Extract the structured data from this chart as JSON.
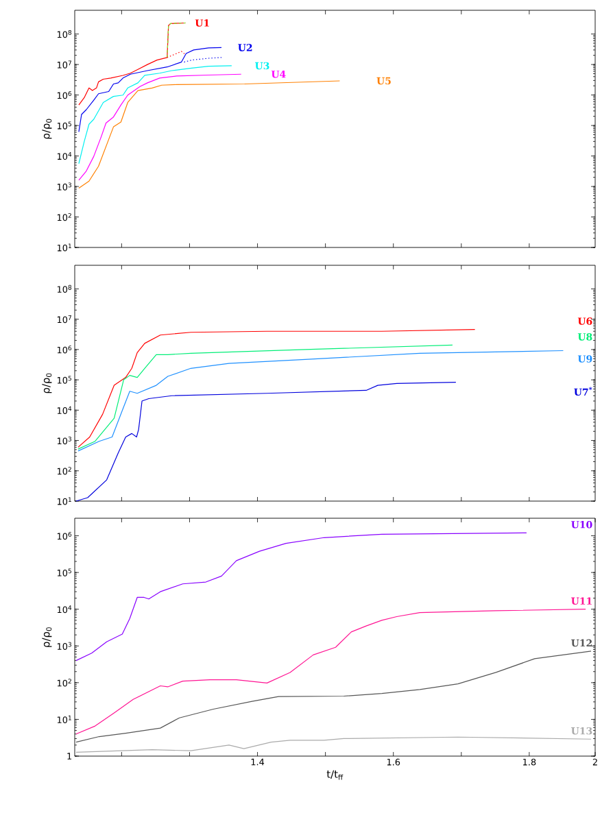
{
  "chart_data": [
    {
      "type": "line",
      "ylabel": "ρ/ρ$_{0}$",
      "log": "y",
      "marker": "none",
      "tick_labels": "y",
      "xlim": [
        1.131,
        1.897
      ],
      "xticks": [
        {
          "value": 1.2,
          "label": null
        },
        {
          "value": 1.3,
          "label": null
        },
        {
          "value": 1.4,
          "label": null
        },
        {
          "value": 1.5,
          "label": null
        },
        {
          "value": 1.6,
          "label": null
        },
        {
          "value": 1.7,
          "label": null
        },
        {
          "value": 1.8,
          "label": null
        }
      ],
      "ylim": [
        10,
        600000000
      ],
      "yticks": [
        {
          "value": 10,
          "label": "10$^{1}$"
        },
        {
          "value": 100,
          "label": "10$^{2}$"
        },
        {
          "value": 1000,
          "label": "10$^{3}$"
        },
        {
          "value": 10000,
          "label": "10$^{4}$"
        },
        {
          "value": 100000,
          "label": "10$^{5}$"
        },
        {
          "value": 1000000,
          "label": "10$^{6}$"
        },
        {
          "value": 10000000,
          "label": "10$^{7}$"
        },
        {
          "value": 100000000,
          "label": "10$^{8}$"
        }
      ],
      "series": [
        {
          "name": "U1",
          "color": "#ff0000",
          "x": [
            1.137,
            1.145,
            1.152,
            1.157,
            1.163,
            1.166,
            1.173,
            1.184,
            1.202,
            1.213,
            1.224,
            1.238,
            1.252,
            1.267,
            1.269,
            1.272,
            1.294
          ],
          "values": [
            470000.0,
            820000.0,
            1700000.0,
            1400000.0,
            1700000.0,
            2700000.0,
            3300000.0,
            3600000.0,
            4400000.0,
            5200000.0,
            6900000.0,
            10000000.0,
            14000000.0,
            17000000.0,
            190000000.0,
            220000000.0,
            230000000.0
          ]
        },
        {
          "color": "#80e020",
          "line_style": "dashed",
          "x": [
            1.267,
            1.269,
            1.272,
            1.294
          ],
          "values": [
            17000000.0,
            190000000.0,
            220000000.0,
            230000000.0
          ]
        },
        {
          "color": "#ff0000",
          "line_style": "dotted",
          "x": [
            1.267,
            1.281,
            1.288,
            1.294
          ],
          "values": [
            17000000.0,
            23000000.0,
            27000000.0,
            21000000.0
          ]
        },
        {
          "name": "U2",
          "color": "#0000ee",
          "x": [
            1.137,
            1.141,
            1.148,
            1.159,
            1.166,
            1.181,
            1.188,
            1.195,
            1.202,
            1.213,
            1.238,
            1.267,
            1.288,
            1.295,
            1.306,
            1.328,
            1.347
          ],
          "values": [
            62000.0,
            230000.0,
            330000.0,
            680000.0,
            1100000.0,
            1300000.0,
            2300000.0,
            2500000.0,
            3600000.0,
            4800000.0,
            6300000.0,
            8300000.0,
            12000000.0,
            23000000.0,
            30000000.0,
            35000000.0,
            36000000.0
          ]
        },
        {
          "color": "#0000ee",
          "line_style": "dotted",
          "x": [
            1.292,
            1.303,
            1.328,
            1.347
          ],
          "values": [
            12000000.0,
            14000000.0,
            16000000.0,
            17000000.0
          ]
        },
        {
          "name": "U3",
          "color": "#00f0f0",
          "x": [
            1.137,
            1.145,
            1.152,
            1.159,
            1.173,
            1.188,
            1.202,
            1.209,
            1.224,
            1.234,
            1.256,
            1.274,
            1.303,
            1.328,
            1.362
          ],
          "values": [
            5600.0,
            30000.0,
            110000.0,
            160000.0,
            570000.0,
            900000.0,
            990000.0,
            1700000.0,
            2500000.0,
            4400000.0,
            5200000.0,
            6300000.0,
            7600000.0,
            8800000.0,
            9100000.0
          ]
        },
        {
          "name": "U4",
          "color": "#ff00ff",
          "x": [
            1.137,
            1.148,
            1.159,
            1.17,
            1.177,
            1.188,
            1.199,
            1.209,
            1.227,
            1.238,
            1.256,
            1.281,
            1.328,
            1.376
          ],
          "values": [
            1600.0,
            3200.0,
            9700.0,
            43000.0,
            120000.0,
            190000.0,
            470000.0,
            990000.0,
            1900000.0,
            2500000.0,
            3600000.0,
            4200000.0,
            4500000.0,
            4800000.0
          ]
        },
        {
          "name": "U5",
          "color": "#ff8000",
          "x": [
            1.137,
            1.152,
            1.166,
            1.181,
            1.188,
            1.199,
            1.209,
            1.224,
            1.245,
            1.259,
            1.281,
            1.381,
            1.521
          ],
          "values": [
            880,
            1500.0,
            4600.0,
            35000.0,
            90000.0,
            130000.0,
            570000.0,
            1400000.0,
            1700000.0,
            2100000.0,
            2200000.0,
            2300000.0,
            2900000.0
          ]
        }
      ]
    },
    {
      "type": "line",
      "ylabel": "ρ/ρ$_{0}$",
      "log": "y",
      "marker": "none",
      "tick_labels": "y",
      "xlim": [
        1.131,
        1.897
      ],
      "xticks": [
        {
          "value": 1.2,
          "label": null
        },
        {
          "value": 1.3,
          "label": null
        },
        {
          "value": 1.4,
          "label": null
        },
        {
          "value": 1.5,
          "label": null
        },
        {
          "value": 1.6,
          "label": null
        },
        {
          "value": 1.7,
          "label": null
        },
        {
          "value": 1.8,
          "label": null
        }
      ],
      "ylim": [
        10,
        600000000
      ],
      "yticks": [
        {
          "value": 10,
          "label": "10$^{1}$"
        },
        {
          "value": 100,
          "label": "10$^{2}$"
        },
        {
          "value": 1000,
          "label": "10$^{3}$"
        },
        {
          "value": 10000,
          "label": "10$^{4}$"
        },
        {
          "value": 100000,
          "label": "10$^{5}$"
        },
        {
          "value": 1000000,
          "label": "10$^{6}$"
        },
        {
          "value": 10000000,
          "label": "10$^{7}$"
        },
        {
          "value": 100000000,
          "label": "10$^{8}$"
        }
      ],
      "series": [
        {
          "name": "U6",
          "color": "#ff0000",
          "x": [
            1.136,
            1.153,
            1.172,
            1.189,
            1.206,
            1.215,
            1.223,
            1.234,
            1.257,
            1.302,
            1.414,
            1.583,
            1.72
          ],
          "values": [
            600,
            1300.0,
            7300.0,
            66000.0,
            120000.0,
            240000.0,
            790000.0,
            1600000.0,
            3000000.0,
            3700000.0,
            4000000.0,
            4000000.0,
            4600000.0
          ]
        },
        {
          "name": "U8",
          "color": "#00ee77",
          "x": [
            1.136,
            1.161,
            1.189,
            1.203,
            1.212,
            1.223,
            1.234,
            1.251,
            1.268,
            1.302,
            1.47,
            1.687
          ],
          "values": [
            520,
            940,
            5400.0,
            100000.0,
            140000.0,
            120000.0,
            240000.0,
            680000.0,
            680000.0,
            750000.0,
            1000000.0,
            1400000.0
          ]
        },
        {
          "name": "U9",
          "color": "#1e90ff",
          "x": [
            1.136,
            1.167,
            1.186,
            1.201,
            1.212,
            1.223,
            1.251,
            1.268,
            1.302,
            1.358,
            1.47,
            1.639,
            1.85
          ],
          "values": [
            450,
            940,
            1300.0,
            9800.0,
            42000.0,
            36000.0,
            66000.0,
            130000.0,
            240000.0,
            350000.0,
            470000.0,
            750000.0,
            920000.0
          ]
        },
        {
          "name": "U7$^{*}$",
          "color": "#0000dd",
          "x": [
            1.133,
            1.15,
            1.178,
            1.195,
            1.206,
            1.215,
            1.222,
            1.225,
            1.23,
            1.24,
            1.274,
            1.414,
            1.56,
            1.577,
            1.605,
            1.692
          ],
          "values": [
            10,
            13,
            50,
            390,
            1300.0,
            1700.0,
            1300.0,
            2300.0,
            20000.0,
            24000.0,
            30000.0,
            36000.0,
            45000.0,
            66000.0,
            76000.0,
            83000.0
          ]
        }
      ]
    },
    {
      "type": "line",
      "ylabel": "ρ/ρ$_{0}$",
      "xlabel": "t/t$_{ff}$",
      "log": "y",
      "marker": "none",
      "xlim": [
        1.131,
        1.897
      ],
      "xticks": [
        {
          "value": 1.2,
          "label": null
        },
        {
          "value": 1.3,
          "label": null
        },
        1.4,
        {
          "value": 1.5,
          "label": null
        },
        1.6,
        {
          "value": 1.7,
          "label": null
        },
        1.8,
        {
          "value": 1.897,
          "label": "2"
        }
      ],
      "ylim": [
        1,
        3000000
      ],
      "yticks": [
        1,
        {
          "value": 10,
          "label": "10$^{1}$"
        },
        {
          "value": 100,
          "label": "10$^{2}$"
        },
        {
          "value": 1000,
          "label": "10$^{3}$"
        },
        {
          "value": 10000,
          "label": "10$^{4}$"
        },
        {
          "value": 100000,
          "label": "10$^{5}$"
        },
        {
          "value": 1000000,
          "label": "10$^{6}$"
        }
      ],
      "series": [
        {
          "name": "U10",
          "color": "#8800ff",
          "x": [
            1.133,
            1.156,
            1.178,
            1.201,
            1.212,
            1.223,
            1.233,
            1.24,
            1.257,
            1.29,
            1.324,
            1.347,
            1.369,
            1.403,
            1.442,
            1.498,
            1.583,
            1.796
          ],
          "values": [
            400,
            640,
            1300.0,
            2100.0,
            5600.0,
            21000.0,
            21000.0,
            19000.0,
            30000.0,
            49000.0,
            55000.0,
            80000.0,
            210000.0,
            380000.0,
            620000.0,
            890000.0,
            1100000.0,
            1200000.0
          ]
        },
        {
          "name": "U11",
          "color": "#ff1493",
          "x": [
            1.133,
            1.161,
            1.189,
            1.217,
            1.257,
            1.268,
            1.29,
            1.33,
            1.369,
            1.414,
            1.448,
            1.482,
            1.515,
            1.538,
            1.56,
            1.583,
            1.605,
            1.639,
            1.751,
            1.883
          ],
          "values": [
            4.0,
            6.6,
            15,
            35,
            82,
            77,
            110,
            120,
            120,
            98,
            190,
            570,
            920,
            2400.0,
            3500.0,
            5000.0,
            6300.0,
            8100.0,
            9100.0,
            10000.0
          ]
        },
        {
          "name": "U12",
          "color": "#555555",
          "x": [
            1.133,
            1.167,
            1.206,
            1.257,
            1.285,
            1.335,
            1.392,
            1.431,
            1.527,
            1.583,
            1.639,
            1.695,
            1.751,
            1.808,
            1.891
          ],
          "values": [
            2.4,
            3.4,
            4.2,
            5.8,
            11,
            19,
            31,
            42,
            43,
            51,
            65,
            93,
            190,
            450,
            720
          ]
        },
        {
          "name": "U13",
          "color": "#aaaaaa",
          "x": [
            1.133,
            1.245,
            1.302,
            1.358,
            1.38,
            1.42,
            1.448,
            1.498,
            1.527,
            1.695,
            1.891
          ],
          "values": [
            1.27,
            1.5,
            1.4,
            2.0,
            1.6,
            2.4,
            2.7,
            2.7,
            3.0,
            3.3,
            2.9
          ]
        }
      ]
    }
  ]
}
